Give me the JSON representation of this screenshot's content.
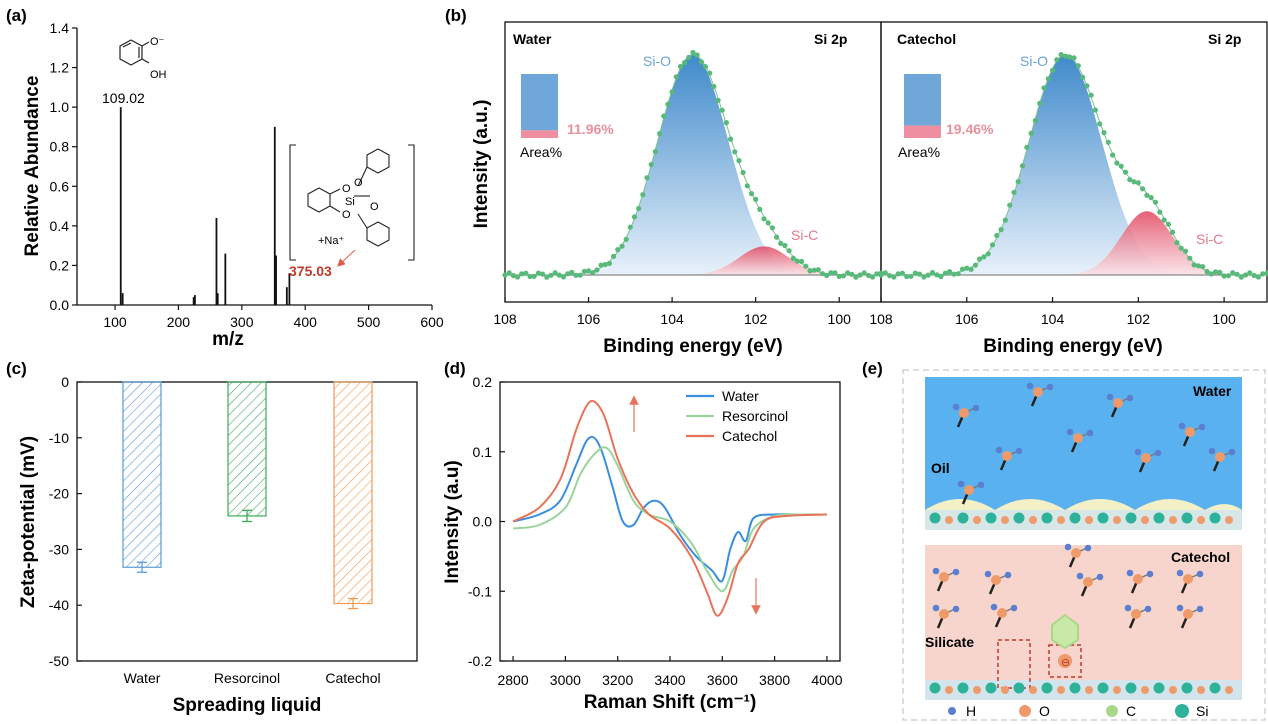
{
  "chart_data": [
    {
      "panel": "(a)",
      "type": "bar",
      "xlabel": "m/z",
      "ylabel": "Relative Abundance",
      "xlim": [
        40,
        600
      ],
      "ylim": [
        0,
        1.4
      ],
      "xticks": [
        100,
        200,
        300,
        400,
        500,
        600
      ],
      "yticks": [
        0.0,
        0.2,
        0.4,
        0.6,
        0.8,
        1.0,
        1.2,
        1.4
      ],
      "x": [
        109.02,
        112,
        224,
        226,
        260,
        262,
        274,
        352,
        354,
        371,
        375.03
      ],
      "values": [
        1.0,
        0.06,
        0.04,
        0.05,
        0.44,
        0.06,
        0.26,
        0.9,
        0.25,
        0.09,
        0.16
      ],
      "annotations": [
        {
          "label": "109.02",
          "x": 109.02
        },
        {
          "label": "375.03",
          "x": 375.03
        }
      ],
      "structure_labels": [
        "O⁻",
        "OH",
        "Si",
        "O",
        "+Na⁺"
      ]
    },
    {
      "panel": "(b)",
      "type": "area",
      "xlabel": "Binding energy (eV)",
      "ylabel": "Intensity (a.u.)",
      "xticks": [
        108,
        106,
        104,
        102,
        100
      ],
      "subplots": [
        {
          "title_left": "Water",
          "title_right": "Si 2p",
          "xlim": [
            108,
            99
          ],
          "peaks": [
            {
              "name": "Si-O",
              "center": 103.5,
              "height": 1.0,
              "sigma": 0.85
            },
            {
              "name": "Si-C",
              "center": 101.8,
              "height": 0.13,
              "sigma": 0.6
            }
          ],
          "inset": {
            "label": "Area%",
            "value": "11.96%",
            "fraction": 0.1196
          }
        },
        {
          "title_left": "Catechol",
          "title_right": "Si 2p",
          "xlim": [
            108,
            99
          ],
          "peaks": [
            {
              "name": "Si-O",
              "center": 103.7,
              "height": 1.0,
              "sigma": 0.85
            },
            {
              "name": "Si-C",
              "center": 101.8,
              "height": 0.29,
              "sigma": 0.6
            }
          ],
          "inset": {
            "label": "Area%",
            "value": "19.46%",
            "fraction": 0.1946
          }
        }
      ]
    },
    {
      "panel": "(c)",
      "type": "bar",
      "xlabel": "Spreading liquid",
      "ylabel": "Zeta-potential (mV)",
      "ylim": [
        -50,
        0
      ],
      "yticks": [
        0,
        -10,
        -20,
        -30,
        -40,
        -50
      ],
      "categories": [
        "Water",
        "Resorcinol",
        "Catechol"
      ],
      "values": [
        -33.2,
        -24.0,
        -39.7
      ],
      "errors": [
        0.9,
        1.0,
        0.9
      ],
      "colors": [
        "#5b9bd5",
        "#3daa5a",
        "#f09a55"
      ]
    },
    {
      "panel": "(d)",
      "type": "line",
      "xlabel": "Raman Shift (cm⁻¹)",
      "ylabel": "Intensity (a.u)",
      "xlim": [
        2750,
        4050
      ],
      "ylim": [
        -0.2,
        0.2
      ],
      "xticks": [
        2800,
        3000,
        3200,
        3400,
        3600,
        3800,
        4000
      ],
      "yticks": [
        0.2,
        0.1,
        0.0,
        -0.1,
        -0.2
      ],
      "legend_position": "top-right",
      "series": [
        {
          "name": "Water",
          "color": "#3a8ee0",
          "x": [
            2800,
            2900,
            2980,
            3040,
            3080,
            3110,
            3140,
            3180,
            3220,
            3260,
            3300,
            3340,
            3380,
            3440,
            3500,
            3560,
            3600,
            3630,
            3660,
            3690,
            3720,
            3800,
            3900,
            4000
          ],
          "y": [
            0.0,
            0.01,
            0.03,
            0.08,
            0.115,
            0.12,
            0.1,
            0.05,
            0.0,
            -0.005,
            0.02,
            0.03,
            0.02,
            -0.02,
            -0.05,
            -0.07,
            -0.085,
            -0.04,
            -0.015,
            -0.028,
            0.005,
            0.01,
            0.01,
            0.01
          ]
        },
        {
          "name": "Resorcinol",
          "color": "#9cd39c",
          "x": [
            2800,
            2900,
            3000,
            3060,
            3120,
            3160,
            3200,
            3260,
            3320,
            3400,
            3480,
            3540,
            3600,
            3640,
            3680,
            3720,
            3800,
            3900,
            4000
          ],
          "y": [
            -0.01,
            -0.005,
            0.02,
            0.07,
            0.1,
            0.105,
            0.08,
            0.03,
            0.01,
            0.0,
            -0.03,
            -0.07,
            -0.1,
            -0.07,
            -0.05,
            -0.01,
            0.008,
            0.01,
            0.01
          ]
        },
        {
          "name": "Catechol",
          "color": "#e8735a",
          "x": [
            2800,
            2900,
            2980,
            3040,
            3080,
            3110,
            3150,
            3200,
            3260,
            3320,
            3400,
            3480,
            3540,
            3580,
            3620,
            3660,
            3700,
            3760,
            3850,
            4000
          ],
          "y": [
            0.0,
            0.02,
            0.06,
            0.13,
            0.165,
            0.172,
            0.15,
            0.09,
            0.04,
            0.01,
            -0.01,
            -0.05,
            -0.1,
            -0.135,
            -0.11,
            -0.06,
            -0.04,
            0.0,
            0.008,
            0.01
          ]
        }
      ],
      "arrows": [
        "up",
        "down"
      ]
    },
    {
      "panel": "(e)",
      "type": "diagram",
      "labels": [
        "Water",
        "Oil",
        "Catechol",
        "Silicate"
      ],
      "legend": [
        {
          "label": "H",
          "color": "#5a7fd0"
        },
        {
          "label": "O",
          "color": "#ef9a6a"
        },
        {
          "label": "C",
          "color": "#a8d98a"
        },
        {
          "label": "Si",
          "color": "#2eb39a"
        }
      ]
    }
  ]
}
